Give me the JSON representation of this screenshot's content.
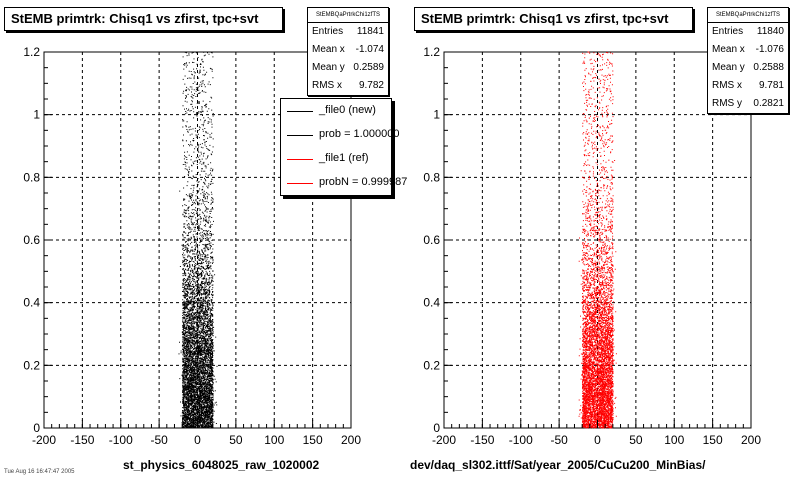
{
  "chart_data": [
    {
      "type": "scatter",
      "title": "StEMB primtrk: Chisq1 vs zfirst, tpc+svt",
      "xlabel": "st_physics_6048025_raw_1020002",
      "ylabel": "",
      "xlim": [
        -200,
        200
      ],
      "ylim": [
        0,
        1.2
      ],
      "x_ticks": [
        "-200",
        "-150",
        "-100",
        "-50",
        "0",
        "50",
        "100",
        "150",
        "200"
      ],
      "y_ticks": [
        "0",
        "0.2",
        "0.4",
        "0.6",
        "0.8",
        "1",
        "1.2"
      ],
      "grid": true,
      "marker_color": "#000000",
      "point_cloud": {
        "x_center": -1.074,
        "x_core_range": [
          -20,
          20
        ],
        "x_tail_range": [
          -25,
          25
        ],
        "y_mean": 0.2589,
        "density": "highest near y=0, decreasing toward y=1.2"
      },
      "stats": {
        "name": "StEMBQaPrtrkChi1zfTS",
        "rows": [
          {
            "label": "Entries",
            "value": "11841"
          },
          {
            "label": "Mean x",
            "value": "-1.074"
          },
          {
            "label": "Mean y",
            "value": "0.2589"
          },
          {
            "label": "RMS x",
            "value": "9.782"
          }
        ]
      },
      "legend": {
        "entries": [
          {
            "label": "_file0 (new)",
            "color": "#000000"
          },
          {
            "label": "prob = 1.000000",
            "color": "#000000"
          },
          {
            "label": "_file1 (ref)",
            "color": "#ff0000"
          },
          {
            "label": "probN = 0.999987",
            "color": "#ff0000"
          }
        ]
      }
    },
    {
      "type": "scatter",
      "title": "StEMB primtrk: Chisq1 vs zfirst, tpc+svt",
      "xlabel": "dev/daq_sl302.ittf/Sat/year_2005/CuCu200_MinBias/",
      "ylabel": "",
      "xlim": [
        -200,
        200
      ],
      "ylim": [
        0,
        1.2
      ],
      "x_ticks": [
        "-200",
        "-150",
        "-100",
        "-50",
        "0",
        "50",
        "100",
        "150",
        "200"
      ],
      "y_ticks": [
        "0",
        "0.2",
        "0.4",
        "0.6",
        "0.8",
        "1",
        "1.2"
      ],
      "grid": true,
      "marker_color": "#ff0000",
      "point_cloud": {
        "x_center": -1.076,
        "x_core_range": [
          -20,
          20
        ],
        "x_tail_range": [
          -25,
          25
        ],
        "y_mean": 0.2588,
        "density": "highest near y=0, decreasing toward y=1.2"
      },
      "stats": {
        "name": "StEMBQaPrtrkChi1zfTS",
        "rows": [
          {
            "label": "Entries",
            "value": "11840"
          },
          {
            "label": "Mean x",
            "value": "-1.076"
          },
          {
            "label": "Mean y",
            "value": "0.2588"
          },
          {
            "label": "RMS x",
            "value": "9.781"
          },
          {
            "label": "RMS y",
            "value": "0.2821"
          }
        ]
      }
    }
  ],
  "footer_note": "Tue Aug 16 16:47:47 2005"
}
